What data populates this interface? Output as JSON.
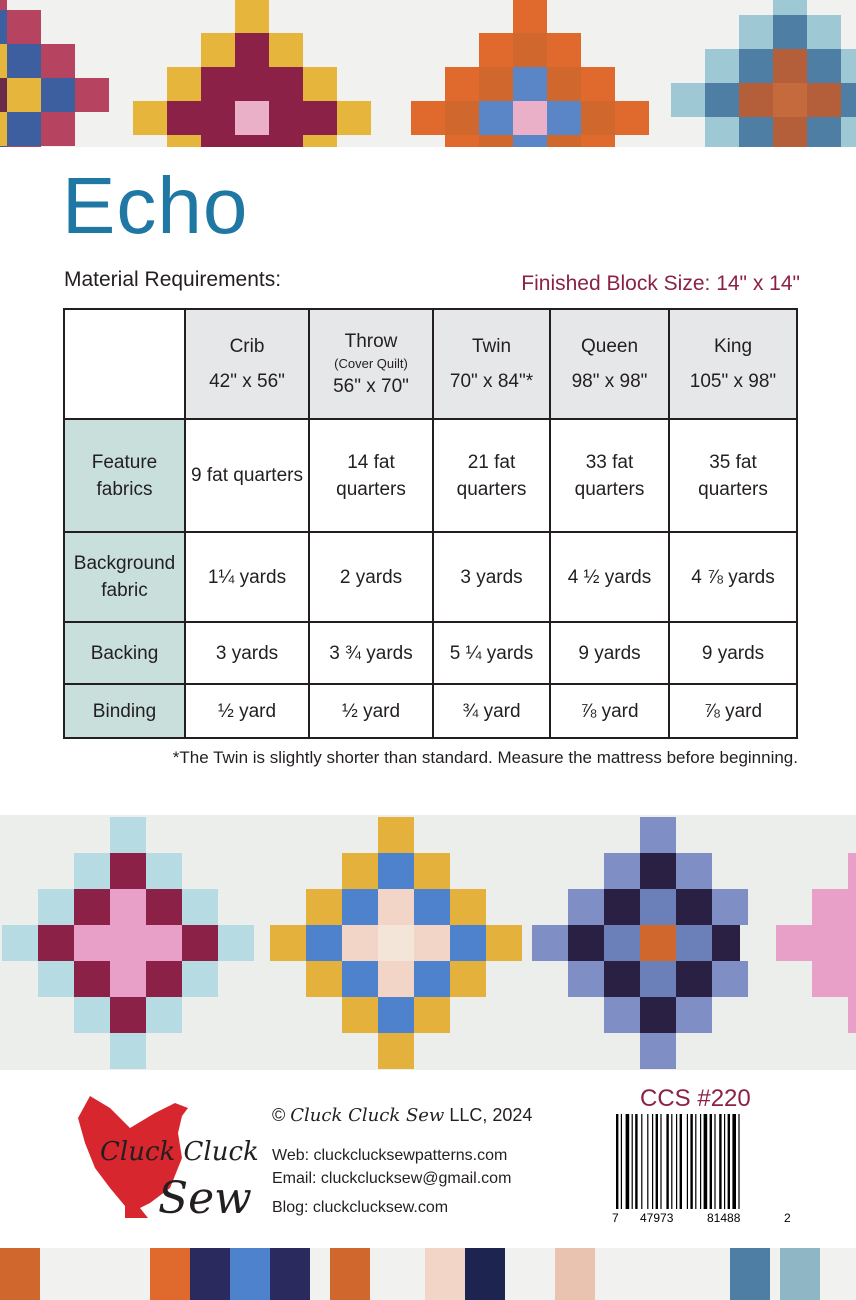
{
  "title": "Echo",
  "material_label": "Material Requirements:",
  "block_size": "Finished Block Size:  14\" x 14\"",
  "table": {
    "columns": [
      {
        "name": "Crib",
        "note": "",
        "size": "42\" x 56\""
      },
      {
        "name": "Throw",
        "note": "(Cover Quilt)",
        "size": "56\" x 70\""
      },
      {
        "name": "Twin",
        "note": "",
        "size": "70\" x 84\"*"
      },
      {
        "name": "Queen",
        "note": "",
        "size": "98\" x 98\""
      },
      {
        "name": "King",
        "note": "",
        "size": "105\" x 98\""
      }
    ],
    "rows": [
      {
        "label": "Feature fabrics",
        "values": [
          "9 fat quarters",
          "14 fat quarters",
          "21 fat quarters",
          "33 fat quarters",
          "35 fat quarters"
        ]
      },
      {
        "label": "Background fabric",
        "values": [
          "1¼ yards",
          "2 yards",
          "3 yards",
          "4 ½ yards",
          "4 ⅞ yards"
        ]
      },
      {
        "label": "Backing",
        "values": [
          "3 yards",
          "3 ¾ yards",
          "5 ¼ yards",
          "9 yards",
          "9 yards"
        ]
      },
      {
        "label": "Binding",
        "values": [
          "½ yard",
          "½ yard",
          "¾  yard",
          "⅞ yard",
          "⅞ yard"
        ]
      }
    ]
  },
  "footnote": "*The Twin is slightly shorter than standard. Measure the mattress before beginning.",
  "footer": {
    "logo_text": "Cluck Cluck Sew",
    "copyright_symbol": "©",
    "copyright_brand": "Cluck Cluck Sew",
    "copyright_rest": "LLC, 2024",
    "web": "Web: cluckclucksewpatterns.com",
    "email": "Email: cluckclucksew@gmail.com",
    "blog": "Blog:  cluckclucksew.com",
    "code": "CCS #220",
    "barcode_digits": [
      "7",
      "47973",
      "81488",
      "2"
    ]
  },
  "colors": {
    "title": "#1f78a3",
    "accent": "#8b2146",
    "row_header": "#c8dfdb",
    "header": "#e6e7e8",
    "logo_red": "#d7262d"
  }
}
